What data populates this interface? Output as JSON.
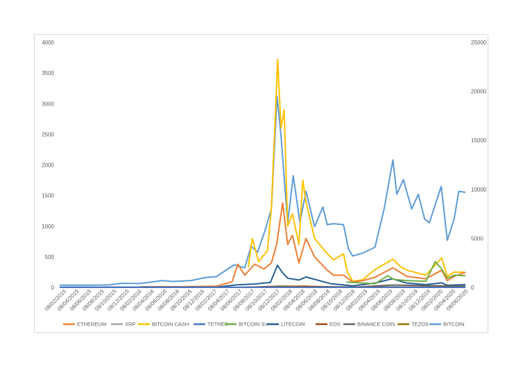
{
  "chart_data": {
    "type": "line",
    "title": "",
    "xlabel": "",
    "ylabel": "",
    "y_left_lim": [
      0,
      4000
    ],
    "y_left_ticks": [
      0,
      500,
      1000,
      1500,
      2000,
      2500,
      3000,
      3500,
      4000
    ],
    "y_right_lim": [
      0,
      25000
    ],
    "y_right_ticks": [
      0,
      5000,
      10000,
      15000,
      20000,
      25000
    ],
    "x_ticks": [
      "08/02/2015",
      "08/04/2015",
      "08/06/2015",
      "08/08/2015",
      "08/10/2015",
      "08/12/2015",
      "08/02/2016",
      "08/04/2016",
      "08/06/2016",
      "08/08/2016",
      "08/10/2016",
      "08/12/2016",
      "08/02/2017",
      "08/04/2017",
      "08/06/2017",
      "08/08/2017",
      "08/10/2017",
      "08/12/2017",
      "08/02/2018",
      "08/04/2018",
      "08/06/2018",
      "08/08/2018",
      "08/10/2018",
      "08/12/2018",
      "08/02/2019",
      "08/04/2019",
      "08/06/2019",
      "08/08/2019",
      "08/10/2019",
      "08/12/2019",
      "08/02/2020",
      "08/04/2020",
      "08/06/2020"
    ],
    "grid": false,
    "legend_position": "bottom",
    "series": [
      {
        "name": "ETHEREUM",
        "color": "#ED7D31",
        "axis": "left",
        "x": [
          "2016-03-01",
          "2016-10-01",
          "2017-03-01",
          "2017-05-15",
          "2017-06-12",
          "2017-07-15",
          "2017-09-01",
          "2017-10-15",
          "2017-11-20",
          "2017-12-15",
          "2018-01-13",
          "2018-02-06",
          "2018-03-01",
          "2018-04-01",
          "2018-05-05",
          "2018-06-15",
          "2018-08-15",
          "2018-09-15",
          "2018-11-01",
          "2018-12-15",
          "2019-02-01",
          "2019-04-01",
          "2019-06-26",
          "2019-09-01",
          "2019-12-01",
          "2020-02-15",
          "2020-03-13",
          "2020-04-15",
          "2020-06-08"
        ],
        "y": [
          10,
          12,
          20,
          90,
          380,
          200,
          380,
          300,
          400,
          700,
          1380,
          700,
          850,
          400,
          800,
          500,
          280,
          200,
          200,
          90,
          110,
          165,
          320,
          180,
          140,
          280,
          110,
          180,
          245
        ]
      },
      {
        "name": "XRP",
        "color": "#A5A5A5",
        "axis": "left",
        "x": [
          "2015-02-08",
          "2017-03-01",
          "2017-12-01",
          "2018-01-04",
          "2018-03-01",
          "2018-09-01",
          "2020-06-08"
        ],
        "y": [
          0,
          1,
          2,
          3,
          1,
          0.5,
          0.2
        ]
      },
      {
        "name": "BITCOIN CASH",
        "color": "#FFC000",
        "axis": "left",
        "x": [
          "2017-08-01",
          "2017-08-20",
          "2017-09-20",
          "2017-11-01",
          "2017-11-20",
          "2017-12-20",
          "2018-01-05",
          "2018-01-20",
          "2018-02-06",
          "2018-03-01",
          "2018-04-01",
          "2018-04-20",
          "2018-05-05",
          "2018-06-15",
          "2018-08-15",
          "2018-09-15",
          "2018-11-01",
          "2018-11-20",
          "2018-12-15",
          "2019-02-01",
          "2019-04-01",
          "2019-06-26",
          "2019-08-01",
          "2019-09-01",
          "2019-12-01",
          "2020-02-15",
          "2020-03-13",
          "2020-04-15",
          "2020-06-08"
        ],
        "y": [
          330,
          800,
          420,
          600,
          1300,
          3720,
          2600,
          2900,
          1000,
          1200,
          700,
          1750,
          1400,
          800,
          550,
          450,
          550,
          250,
          100,
          125,
          290,
          460,
          340,
          280,
          200,
          480,
          180,
          250,
          245
        ]
      },
      {
        "name": "TETHER",
        "color": "#4472C4",
        "axis": "left",
        "x": [
          "2015-02-08",
          "2016-06-01",
          "2017-06-01",
          "2018-01-01",
          "2019-01-01",
          "2020-06-08"
        ],
        "y": [
          1,
          1,
          1,
          1,
          1,
          1
        ]
      },
      {
        "name": "BITCOIN SV",
        "color": "#70AD47",
        "axis": "left",
        "x": [
          "2018-11-15",
          "2018-12-15",
          "2019-01-15",
          "2019-04-01",
          "2019-06-01",
          "2019-07-01",
          "2019-09-01",
          "2019-12-01",
          "2020-01-15",
          "2020-02-15",
          "2020-03-13",
          "2020-04-15",
          "2020-06-08"
        ],
        "y": [
          90,
          80,
          75,
          60,
          190,
          130,
          110,
          100,
          420,
          300,
          150,
          200,
          190
        ]
      },
      {
        "name": "LITECOIN",
        "color": "#255E91",
        "axis": "left",
        "x": [
          "2015-02-08",
          "2016-06-01",
          "2017-03-01",
          "2017-06-01",
          "2017-09-01",
          "2017-11-15",
          "2017-12-19",
          "2018-01-10",
          "2018-02-06",
          "2018-04-01",
          "2018-05-05",
          "2018-09-01",
          "2018-12-15",
          "2019-04-01",
          "2019-06-22",
          "2019-09-01",
          "2019-12-01",
          "2020-02-15",
          "2020-03-13",
          "2020-06-08"
        ],
        "y": [
          2,
          4,
          5,
          40,
          55,
          80,
          360,
          250,
          150,
          120,
          170,
          60,
          25,
          70,
          140,
          70,
          45,
          75,
          35,
          45
        ]
      },
      {
        "name": "EOS",
        "color": "#9E480E",
        "axis": "left",
        "x": [
          "2017-07-01",
          "2018-01-01",
          "2018-04-29",
          "2018-09-01",
          "2019-04-01",
          "2020-06-08"
        ],
        "y": [
          1,
          15,
          20,
          5,
          7,
          3
        ]
      },
      {
        "name": "BINANCE COIN",
        "color": "#636363",
        "axis": "left",
        "x": [
          "2017-07-25",
          "2018-01-01",
          "2018-06-01",
          "2019-01-01",
          "2019-06-22",
          "2020-02-15",
          "2020-06-08"
        ],
        "y": [
          0.5,
          20,
          14,
          6,
          38,
          25,
          18
        ]
      },
      {
        "name": "TEZOS",
        "color": "#997300",
        "axis": "left",
        "x": [
          "2017-10-01",
          "2018-01-01",
          "2018-06-01",
          "2019-01-01",
          "2019-06-01",
          "2020-02-15",
          "2020-06-08"
        ],
        "y": [
          2,
          8,
          4,
          1,
          1.5,
          3,
          2.5
        ]
      },
      {
        "name": "BITCOIN",
        "color": "#5B9BD5",
        "axis": "right",
        "x": [
          "2015-02-08",
          "2015-06-01",
          "2015-10-01",
          "2015-12-01",
          "2016-03-01",
          "2016-06-16",
          "2016-08-01",
          "2016-11-01",
          "2017-01-05",
          "2017-03-01",
          "2017-05-25",
          "2017-07-15",
          "2017-08-15",
          "2017-09-15",
          "2017-10-20",
          "2017-11-20",
          "2017-12-17",
          "2018-01-05",
          "2018-02-06",
          "2018-03-05",
          "2018-04-06",
          "2018-05-05",
          "2018-06-15",
          "2018-07-25",
          "2018-08-15",
          "2018-09-15",
          "2018-11-01",
          "2018-11-25",
          "2018-12-15",
          "2019-02-01",
          "2019-04-01",
          "2019-05-15",
          "2019-06-26",
          "2019-07-15",
          "2019-08-15",
          "2019-09-24",
          "2019-10-26",
          "2019-11-25",
          "2019-12-18",
          "2020-02-13",
          "2020-03-13",
          "2020-04-15",
          "2020-05-07",
          "2020-06-08"
        ],
        "y": [
          230,
          230,
          250,
          420,
          400,
          700,
          600,
          700,
          1000,
          1100,
          2300,
          2000,
          4200,
          3600,
          5800,
          8000,
          19500,
          15500,
          6500,
          11400,
          6600,
          9800,
          6200,
          8200,
          6400,
          6500,
          6400,
          3900,
          3200,
          3500,
          4100,
          8000,
          13000,
          9500,
          11000,
          8000,
          9500,
          7000,
          6600,
          10300,
          4800,
          7000,
          9800,
          9700
        ]
      }
    ]
  }
}
